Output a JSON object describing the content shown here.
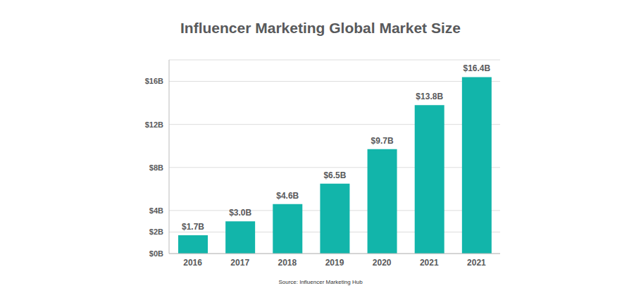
{
  "chart_data": {
    "type": "bar",
    "title": "Influencer Marketing Global Market Size",
    "source": "Source: Influencer Marketing Hub",
    "categories": [
      "2016",
      "2017",
      "2018",
      "2019",
      "2020",
      "2021",
      "2021"
    ],
    "values": [
      1.7,
      3.0,
      4.6,
      6.5,
      9.7,
      13.8,
      16.4
    ],
    "value_labels": [
      "$1.7B",
      "$3.0B",
      "$4.6B",
      "$6.5B",
      "$9.7B",
      "$13.8B",
      "$16.4B"
    ],
    "data_labels": true,
    "color": "#12b5aa",
    "ylim": [
      0,
      18
    ],
    "yticks": [
      {
        "value": 0,
        "label": "$0B"
      },
      {
        "value": 2,
        "label": "$2B"
      },
      {
        "value": 4,
        "label": "$4B"
      },
      {
        "value": 8,
        "label": "$8B"
      },
      {
        "value": 12,
        "label": "$12B"
      },
      {
        "value": 16,
        "label": "$16B"
      }
    ],
    "grid": true
  }
}
